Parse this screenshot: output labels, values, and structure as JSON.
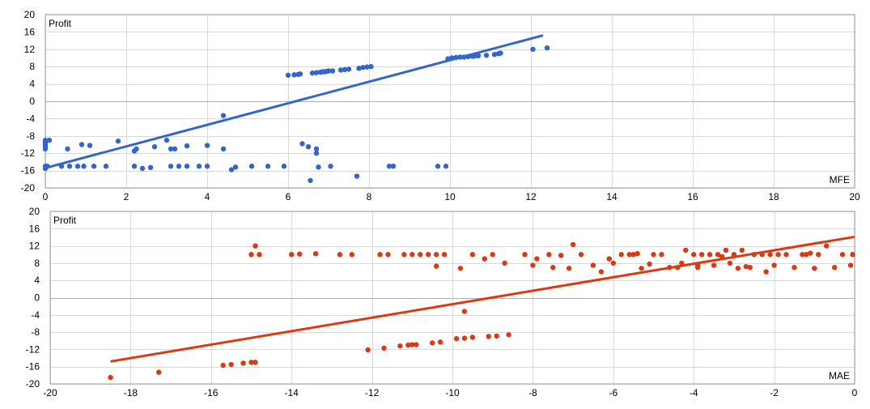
{
  "chart_data": [
    {
      "type": "scatter",
      "title": "",
      "ylabel": "Profit",
      "xlabel": "MFE",
      "xlim": [
        0,
        20
      ],
      "ylim": [
        -20,
        20
      ],
      "x_ticks": [
        0,
        2,
        4,
        6,
        8,
        10,
        12,
        14,
        16,
        18,
        20
      ],
      "y_ticks": [
        20,
        16,
        12,
        8,
        4,
        0,
        -4,
        -8,
        -12,
        -16,
        -20
      ],
      "grid": true,
      "color": "#3366cc",
      "trendline": {
        "x1": 0,
        "y1": -15.4,
        "x2": 12.3,
        "y2": 15.2
      },
      "points": [
        [
          0.0,
          -9.0
        ],
        [
          0.0,
          -9.5
        ],
        [
          0.0,
          -10.0
        ],
        [
          0.0,
          -10.5
        ],
        [
          0.0,
          -11.0
        ],
        [
          0.0,
          -15.0
        ],
        [
          0.0,
          -15.5
        ],
        [
          0.05,
          -15.0
        ],
        [
          0.1,
          -9.0
        ],
        [
          0.4,
          -15.0
        ],
        [
          0.55,
          -11.0
        ],
        [
          0.6,
          -15.0
        ],
        [
          0.8,
          -15.0
        ],
        [
          0.9,
          -10.0
        ],
        [
          0.95,
          -15.0
        ],
        [
          1.1,
          -10.2
        ],
        [
          1.2,
          -15.0
        ],
        [
          1.5,
          -15.0
        ],
        [
          1.8,
          -9.2
        ],
        [
          2.2,
          -11.5
        ],
        [
          2.25,
          -11.0
        ],
        [
          2.2,
          -15.0
        ],
        [
          2.4,
          -15.5
        ],
        [
          2.6,
          -15.3
        ],
        [
          2.7,
          -10.5
        ],
        [
          3.0,
          -9.0
        ],
        [
          3.1,
          -11.0
        ],
        [
          3.2,
          -11.0
        ],
        [
          3.1,
          -15.0
        ],
        [
          3.3,
          -15.0
        ],
        [
          3.5,
          -15.0
        ],
        [
          3.5,
          -10.3
        ],
        [
          3.8,
          -15.0
        ],
        [
          4.0,
          -15.0
        ],
        [
          4.0,
          -10.2
        ],
        [
          4.4,
          -11.0
        ],
        [
          4.4,
          -3.3
        ],
        [
          4.6,
          -15.8
        ],
        [
          4.7,
          -15.2
        ],
        [
          5.1,
          -15.0
        ],
        [
          5.5,
          -15.0
        ],
        [
          5.9,
          -15.0
        ],
        [
          6.0,
          6.0
        ],
        [
          6.15,
          6.1
        ],
        [
          6.25,
          6.2
        ],
        [
          6.3,
          6.3
        ],
        [
          6.35,
          -9.8
        ],
        [
          6.5,
          -10.5
        ],
        [
          6.55,
          -18.3
        ],
        [
          6.6,
          6.5
        ],
        [
          6.7,
          6.6
        ],
        [
          6.7,
          -11.0
        ],
        [
          6.7,
          -12.0
        ],
        [
          6.75,
          -15.2
        ],
        [
          6.8,
          6.7
        ],
        [
          6.85,
          6.8
        ],
        [
          6.9,
          6.8
        ],
        [
          6.95,
          6.9
        ],
        [
          7.0,
          7.0
        ],
        [
          7.05,
          -15.0
        ],
        [
          7.1,
          7.0
        ],
        [
          7.3,
          7.2
        ],
        [
          7.4,
          7.3
        ],
        [
          7.5,
          7.4
        ],
        [
          7.7,
          -17.3
        ],
        [
          7.75,
          7.6
        ],
        [
          7.85,
          7.8
        ],
        [
          7.95,
          7.9
        ],
        [
          8.05,
          8.0
        ],
        [
          8.5,
          -15.0
        ],
        [
          8.6,
          -15.0
        ],
        [
          9.7,
          -15.0
        ],
        [
          9.9,
          -15.0
        ],
        [
          9.95,
          9.8
        ],
        [
          10.05,
          10.0
        ],
        [
          10.15,
          10.1
        ],
        [
          10.25,
          10.2
        ],
        [
          10.35,
          10.2
        ],
        [
          10.45,
          10.3
        ],
        [
          10.55,
          10.4
        ],
        [
          10.6,
          10.4
        ],
        [
          10.7,
          10.5
        ],
        [
          10.9,
          10.6
        ],
        [
          11.1,
          10.8
        ],
        [
          11.2,
          11.0
        ],
        [
          11.25,
          11.1
        ],
        [
          12.05,
          12.0
        ],
        [
          12.4,
          12.3
        ]
      ]
    },
    {
      "type": "scatter",
      "title": "",
      "ylabel": "Profit",
      "xlabel": "MAE",
      "xlim": [
        -20,
        0
      ],
      "ylim": [
        -20,
        20
      ],
      "x_ticks": [
        -20,
        -18,
        -16,
        -14,
        -12,
        -10,
        -8,
        -6,
        -4,
        -2,
        0
      ],
      "y_ticks": [
        20,
        16,
        12,
        8,
        4,
        0,
        -4,
        -8,
        -12,
        -16,
        -20
      ],
      "grid": true,
      "color": "#dc3912",
      "trendline": {
        "x1": -18.5,
        "y1": -14.8,
        "x2": 0,
        "y2": 14.1
      },
      "points": [
        [
          -18.5,
          -18.5
        ],
        [
          -17.3,
          -17.3
        ],
        [
          -15.7,
          -15.7
        ],
        [
          -15.5,
          -15.5
        ],
        [
          -15.2,
          -15.2
        ],
        [
          -15.0,
          -15.0
        ],
        [
          -14.9,
          -15.0
        ],
        [
          -15.0,
          10.0
        ],
        [
          -14.9,
          12.0
        ],
        [
          -14.8,
          10.0
        ],
        [
          -14.0,
          10.0
        ],
        [
          -13.8,
          10.1
        ],
        [
          -13.4,
          10.2
        ],
        [
          -12.8,
          10.0
        ],
        [
          -12.5,
          10.0
        ],
        [
          -12.1,
          -12.1
        ],
        [
          -11.7,
          -11.7
        ],
        [
          -11.3,
          -11.2
        ],
        [
          -11.1,
          -11.0
        ],
        [
          -11.0,
          -10.9
        ],
        [
          -10.9,
          -10.9
        ],
        [
          -11.8,
          10.0
        ],
        [
          -11.6,
          10.0
        ],
        [
          -11.2,
          10.0
        ],
        [
          -11.0,
          10.0
        ],
        [
          -10.8,
          10.0
        ],
        [
          -10.6,
          10.0
        ],
        [
          -10.4,
          10.0
        ],
        [
          -10.2,
          10.0
        ],
        [
          -10.5,
          -10.5
        ],
        [
          -10.3,
          -10.3
        ],
        [
          -10.4,
          7.3
        ],
        [
          -9.9,
          -9.5
        ],
        [
          -9.7,
          -9.4
        ],
        [
          -9.5,
          -9.2
        ],
        [
          -9.7,
          -3.2
        ],
        [
          -9.8,
          6.8
        ],
        [
          -9.5,
          10.0
        ],
        [
          -9.2,
          9.0
        ],
        [
          -9.0,
          10.0
        ],
        [
          -8.7,
          8.0
        ],
        [
          -9.1,
          -9.0
        ],
        [
          -8.9,
          -8.9
        ],
        [
          -8.6,
          -8.6
        ],
        [
          -8.2,
          10.0
        ],
        [
          -8.0,
          7.5
        ],
        [
          -7.9,
          9.0
        ],
        [
          -7.6,
          10.0
        ],
        [
          -7.5,
          7.0
        ],
        [
          -7.3,
          9.8
        ],
        [
          -7.1,
          6.8
        ],
        [
          -7.0,
          12.3
        ],
        [
          -6.8,
          10.0
        ],
        [
          -6.5,
          7.5
        ],
        [
          -6.3,
          6.0
        ],
        [
          -6.0,
          8.0
        ],
        [
          -5.8,
          10.0
        ],
        [
          -5.6,
          10.0
        ],
        [
          -5.5,
          10.0
        ],
        [
          -5.3,
          6.8
        ],
        [
          -5.1,
          7.8
        ],
        [
          -5.0,
          10.0
        ],
        [
          -4.8,
          10.0
        ],
        [
          -4.6,
          7.0
        ],
        [
          -4.4,
          7.0
        ],
        [
          -4.2,
          11.0
        ],
        [
          -4.0,
          10.0
        ],
        [
          -3.9,
          7.0
        ],
        [
          -3.8,
          10.0
        ],
        [
          -3.6,
          10.0
        ],
        [
          -3.5,
          7.5
        ],
        [
          -3.4,
          10.0
        ],
        [
          -3.2,
          11.0
        ],
        [
          -3.0,
          10.0
        ],
        [
          -2.9,
          6.8
        ],
        [
          -2.8,
          11.0
        ],
        [
          -2.6,
          7.0
        ],
        [
          -2.5,
          10.0
        ],
        [
          -2.3,
          10.0
        ],
        [
          -2.2,
          6.0
        ],
        [
          -2.1,
          10.0
        ],
        [
          -2.0,
          7.5
        ],
        [
          -1.9,
          10.0
        ],
        [
          -1.7,
          10.0
        ],
        [
          -1.5,
          7.0
        ],
        [
          -1.3,
          10.0
        ],
        [
          -1.2,
          10.0
        ],
        [
          -1.0,
          6.8
        ],
        [
          -0.9,
          10.0
        ],
        [
          -0.7,
          12.0
        ],
        [
          -0.5,
          7.0
        ],
        [
          -0.3,
          10.0
        ],
        [
          -0.1,
          7.5
        ],
        [
          -0.05,
          10.0
        ],
        [
          -3.9,
          7.5
        ],
        [
          -4.3,
          8.0
        ],
        [
          -2.7,
          7.2
        ],
        [
          -1.1,
          10.3
        ],
        [
          -3.3,
          9.5
        ],
        [
          -6.1,
          9.0
        ],
        [
          -5.4,
          10.2
        ],
        [
          -3.1,
          8.0
        ]
      ]
    }
  ]
}
